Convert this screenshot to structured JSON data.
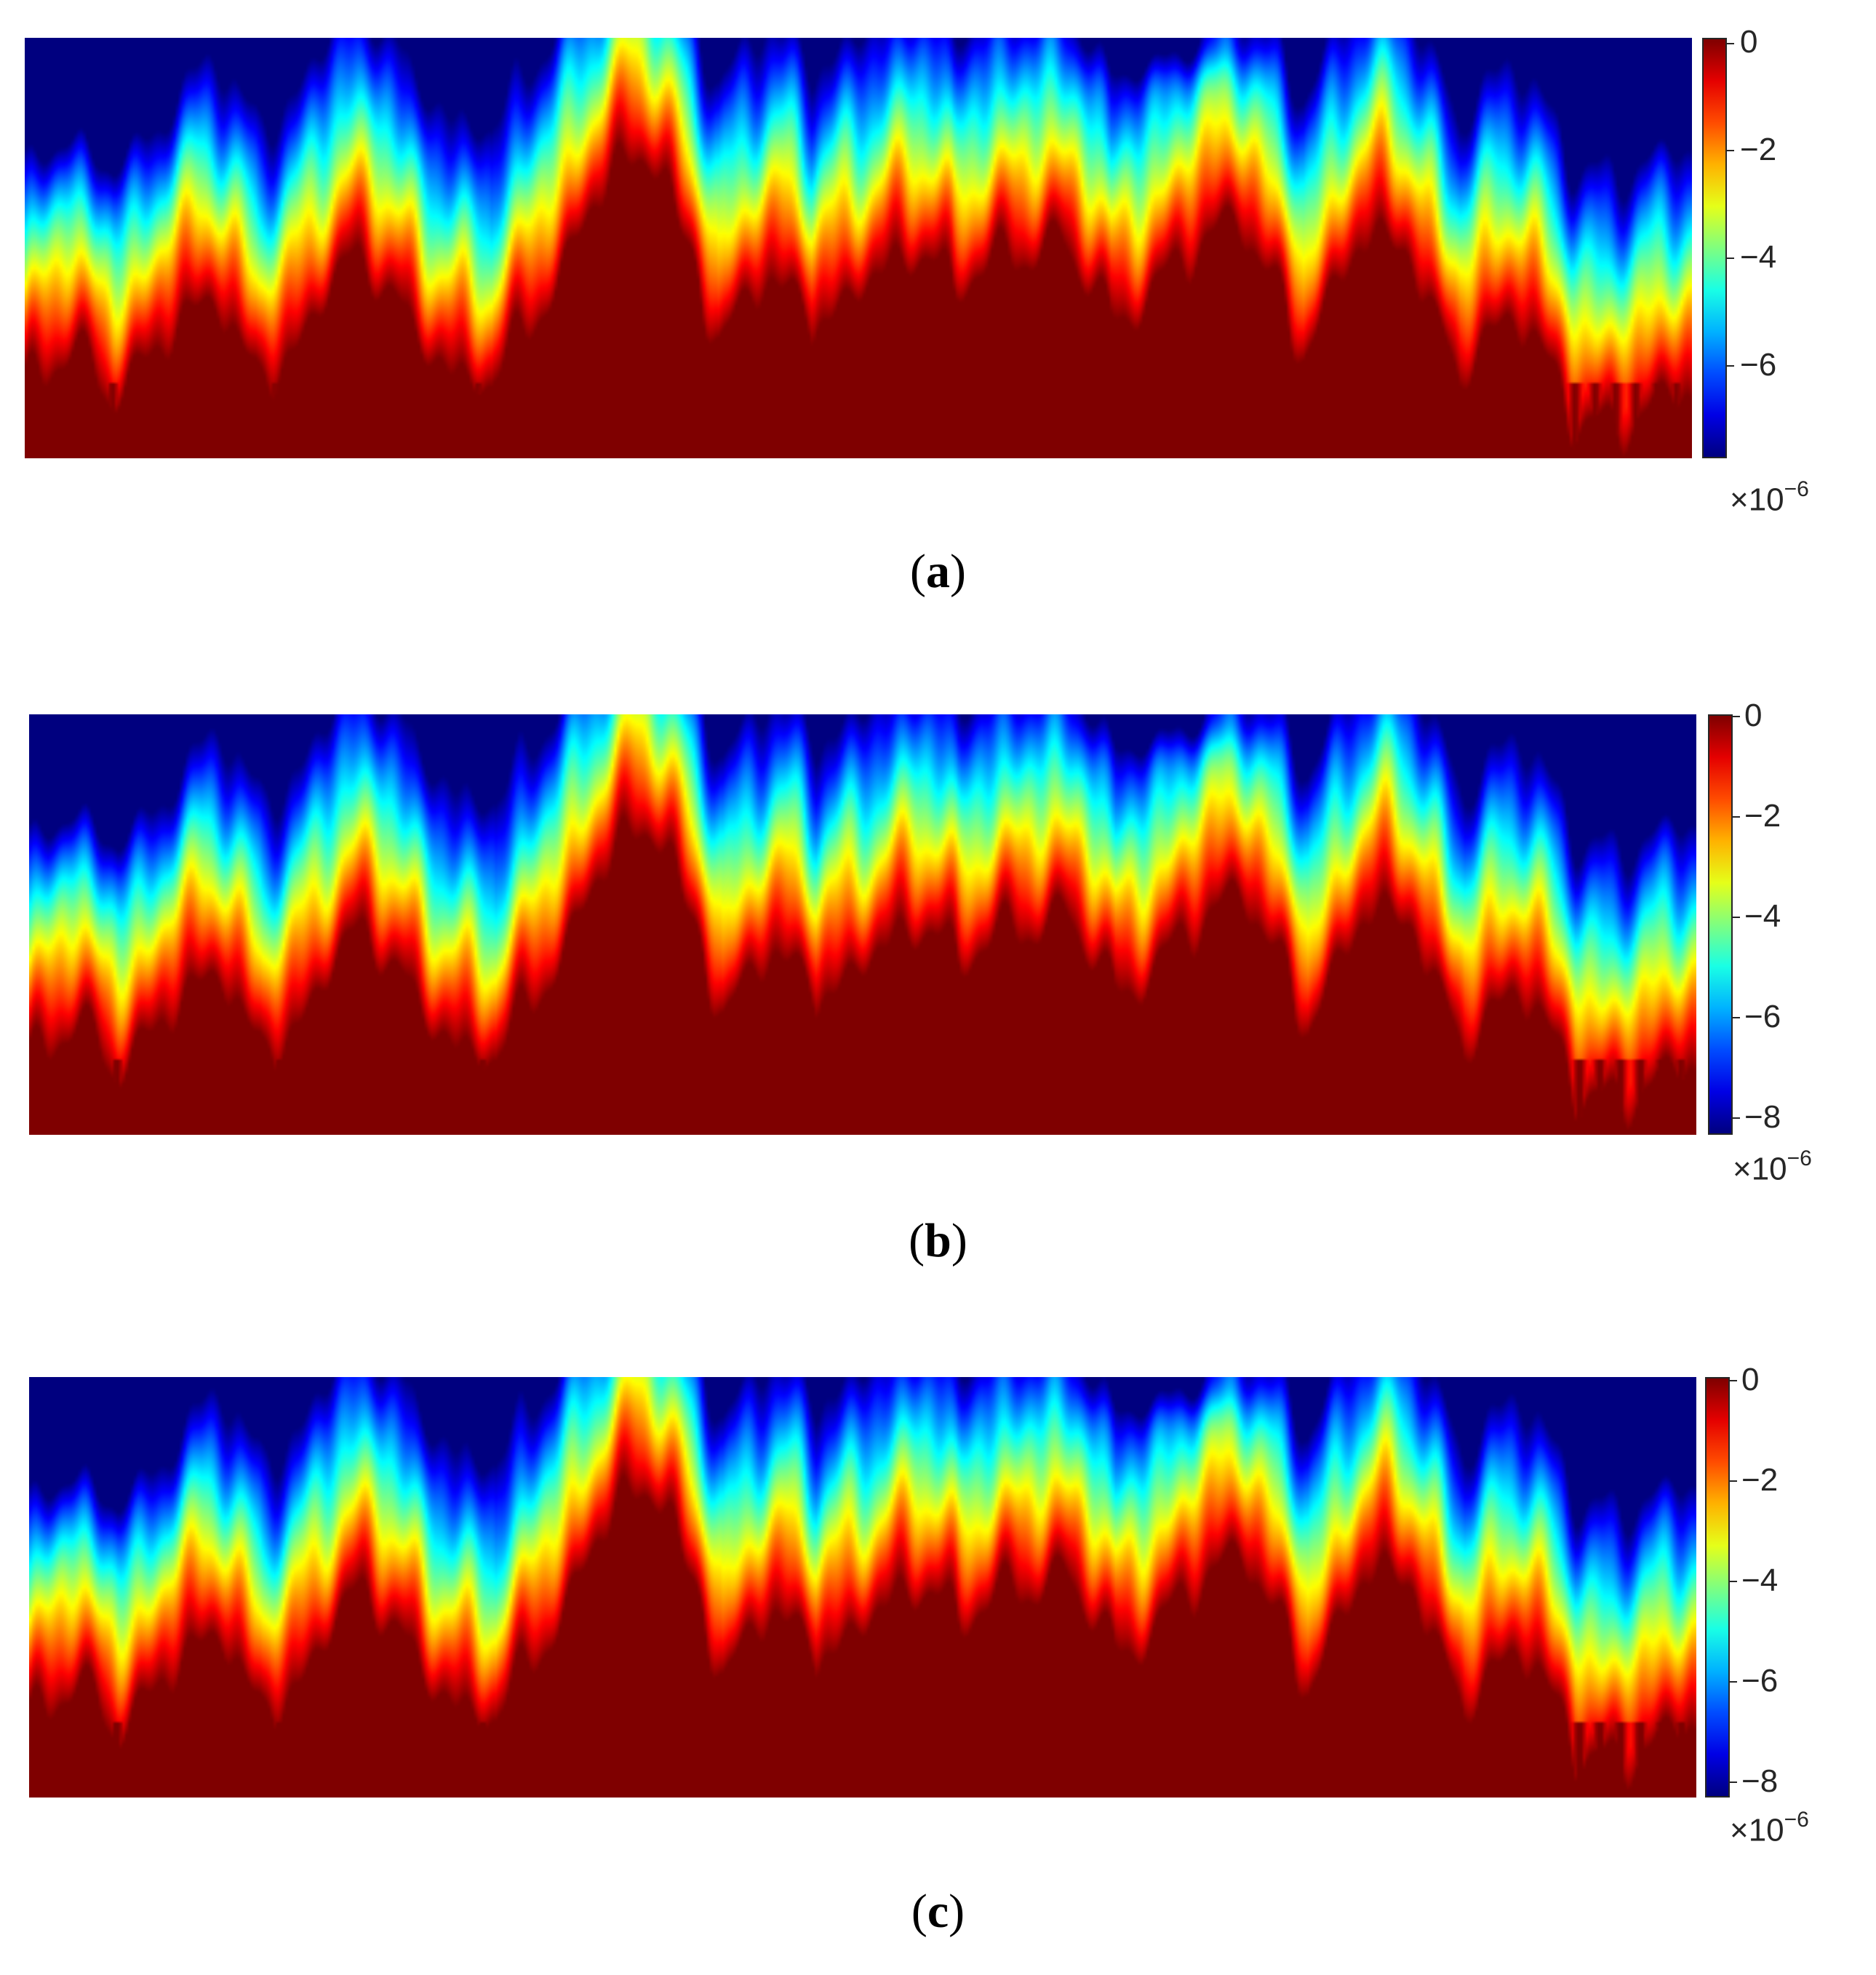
{
  "chart_data": [
    {
      "type": "heatmap",
      "label": "a",
      "colormap": "jet",
      "colorbar": {
        "min": -7.6,
        "max": 0,
        "ticks": [
          0,
          -2,
          -4,
          -6
        ],
        "tick_labels": [
          "0",
          "−2",
          "−4",
          "−6"
        ],
        "scale_prefix": "×10",
        "scale_exponent": "−6"
      }
    },
    {
      "type": "heatmap",
      "label": "b",
      "colormap": "jet",
      "colorbar": {
        "min": -8,
        "max": 0,
        "ticks": [
          0,
          -2,
          -4,
          -6,
          -8
        ],
        "tick_labels": [
          "0",
          "−2",
          "−4",
          "−6",
          "−8"
        ],
        "scale_prefix": "×10",
        "scale_exponent": "−6"
      }
    },
    {
      "type": "heatmap",
      "label": "c",
      "colormap": "jet",
      "colorbar": {
        "min": -8,
        "max": 0,
        "ticks": [
          0,
          -2,
          -4,
          -6,
          -8
        ],
        "tick_labels": [
          "0",
          "−2",
          "−4",
          "−6",
          "−8"
        ],
        "scale_prefix": "×10",
        "scale_exponent": "−6"
      }
    }
  ],
  "captions": {
    "a": "a",
    "b": "b",
    "c": "c"
  }
}
